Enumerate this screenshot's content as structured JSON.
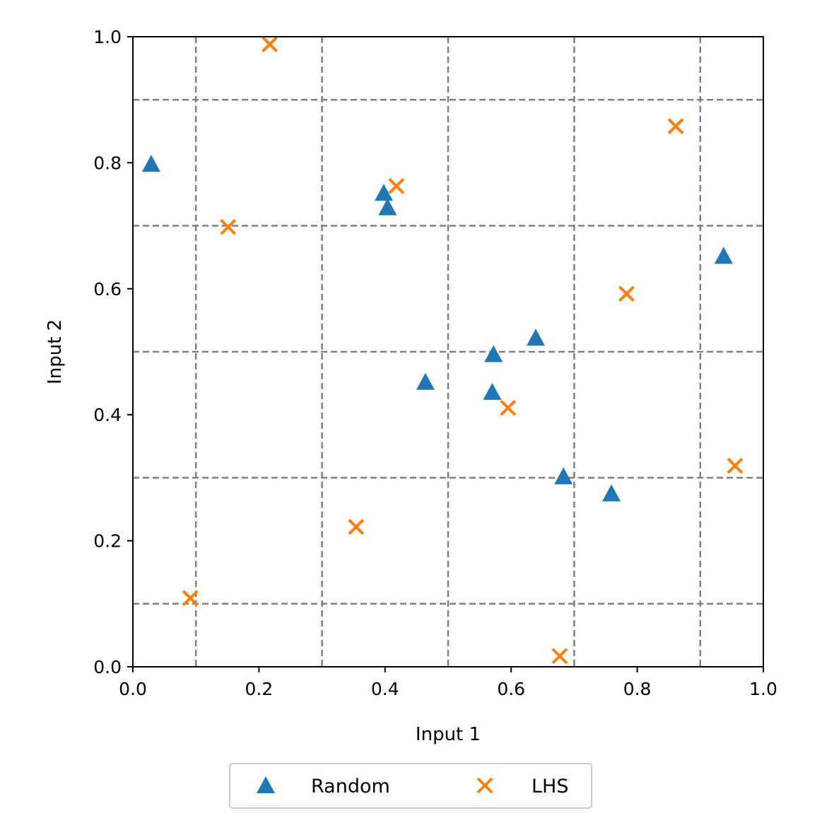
{
  "chart_data": {
    "type": "scatter",
    "title": "",
    "xlabel": "Input 1",
    "ylabel": "Input 2",
    "xlim": [
      0,
      1
    ],
    "ylim": [
      0,
      1
    ],
    "xticks": [
      "0.0",
      "0.2",
      "0.4",
      "0.6",
      "0.8",
      "1.0"
    ],
    "yticks": [
      "0.0",
      "0.2",
      "0.4",
      "0.6",
      "0.8",
      "1.0"
    ],
    "xtick_values": [
      0,
      0.2,
      0.4,
      0.6,
      0.8,
      1.0
    ],
    "ytick_values": [
      0,
      0.2,
      0.4,
      0.6,
      0.8,
      1.0
    ],
    "grid": true,
    "grid_style": "dashed",
    "grid_lines": [
      0.1,
      0.3,
      0.5,
      0.7,
      0.9
    ],
    "legend_position": "bottom-center, below plot",
    "series": [
      {
        "name": "Random",
        "marker": "triangle",
        "color": "#1f77b4",
        "points": [
          {
            "x": 0.029,
            "y": 0.798
          },
          {
            "x": 0.398,
            "y": 0.752
          },
          {
            "x": 0.404,
            "y": 0.729
          },
          {
            "x": 0.464,
            "y": 0.452
          },
          {
            "x": 0.572,
            "y": 0.496
          },
          {
            "x": 0.57,
            "y": 0.436
          },
          {
            "x": 0.639,
            "y": 0.522
          },
          {
            "x": 0.683,
            "y": 0.302
          },
          {
            "x": 0.759,
            "y": 0.275
          },
          {
            "x": 0.937,
            "y": 0.652
          }
        ]
      },
      {
        "name": "LHS",
        "marker": "x",
        "color": "#ff7f0e",
        "points": [
          {
            "x": 0.091,
            "y": 0.109
          },
          {
            "x": 0.151,
            "y": 0.698
          },
          {
            "x": 0.217,
            "y": 0.988
          },
          {
            "x": 0.354,
            "y": 0.222
          },
          {
            "x": 0.418,
            "y": 0.763
          },
          {
            "x": 0.595,
            "y": 0.411
          },
          {
            "x": 0.677,
            "y": 0.017
          },
          {
            "x": 0.783,
            "y": 0.592
          },
          {
            "x": 0.861,
            "y": 0.858
          },
          {
            "x": 0.955,
            "y": 0.319
          }
        ]
      }
    ]
  },
  "legend": {
    "items": [
      {
        "label": "Random",
        "icon": "triangle-marker-icon"
      },
      {
        "label": "LHS",
        "icon": "x-marker-icon"
      }
    ]
  }
}
